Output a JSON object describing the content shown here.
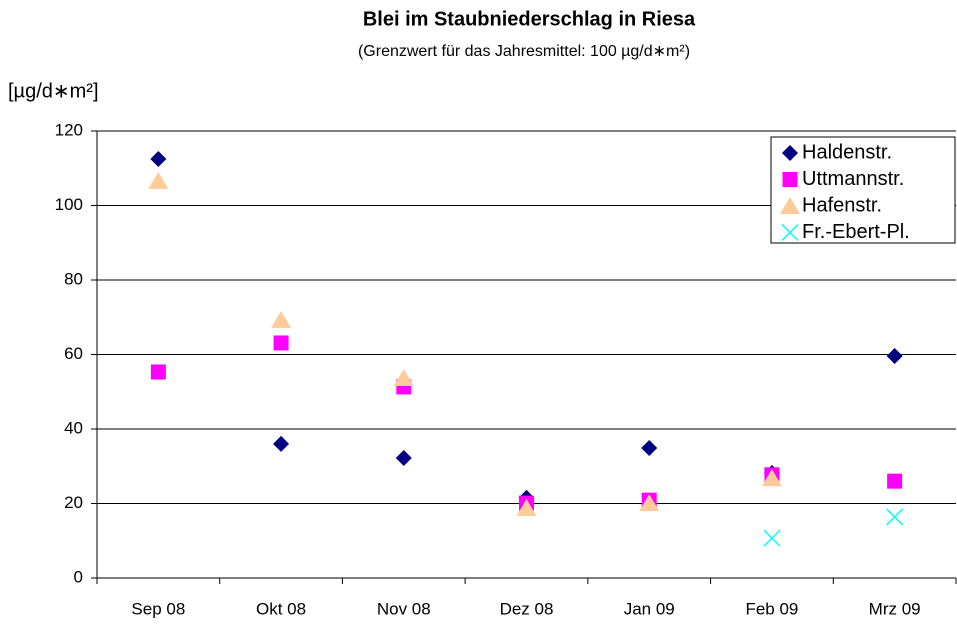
{
  "chart_data": {
    "type": "scatter",
    "title": "Blei im Staubniederschlag in Riesa",
    "subtitle": "(Grenzwert für das Jahresmittel: 100 µg/d∗m²)",
    "y_label": "[µg/d∗m²]",
    "categories": [
      "Sep 08",
      "Okt 08",
      "Nov 08",
      "Dez 08",
      "Jan 09",
      "Feb 09",
      "Mrz 09"
    ],
    "series": [
      {
        "name": "Haldenstr.",
        "color": "#000080",
        "marker": "diamond",
        "values": [
          112.5,
          36,
          32.2,
          21.5,
          34.9,
          28.2,
          59.6
        ]
      },
      {
        "name": "Uttmannstr.",
        "color": "#FF00FF",
        "marker": "square",
        "values": [
          55.3,
          63.1,
          51.3,
          20.1,
          20.9,
          27.7,
          26
        ]
      },
      {
        "name": "Hafenstr.",
        "color": "#FFCC99",
        "marker": "triangle",
        "values": [
          106.6,
          69.3,
          53.7,
          18.8,
          20.1,
          26.8,
          null
        ]
      },
      {
        "name": "Fr.-Ebert-Pl.",
        "color": "#00FFFF",
        "marker": "x",
        "values": [
          null,
          null,
          null,
          null,
          null,
          10.7,
          16.4
        ]
      }
    ],
    "ylim": [
      0,
      120
    ],
    "yticks": [
      0,
      20,
      40,
      60,
      80,
      100,
      120
    ],
    "grid": true,
    "legend": "top-right"
  }
}
